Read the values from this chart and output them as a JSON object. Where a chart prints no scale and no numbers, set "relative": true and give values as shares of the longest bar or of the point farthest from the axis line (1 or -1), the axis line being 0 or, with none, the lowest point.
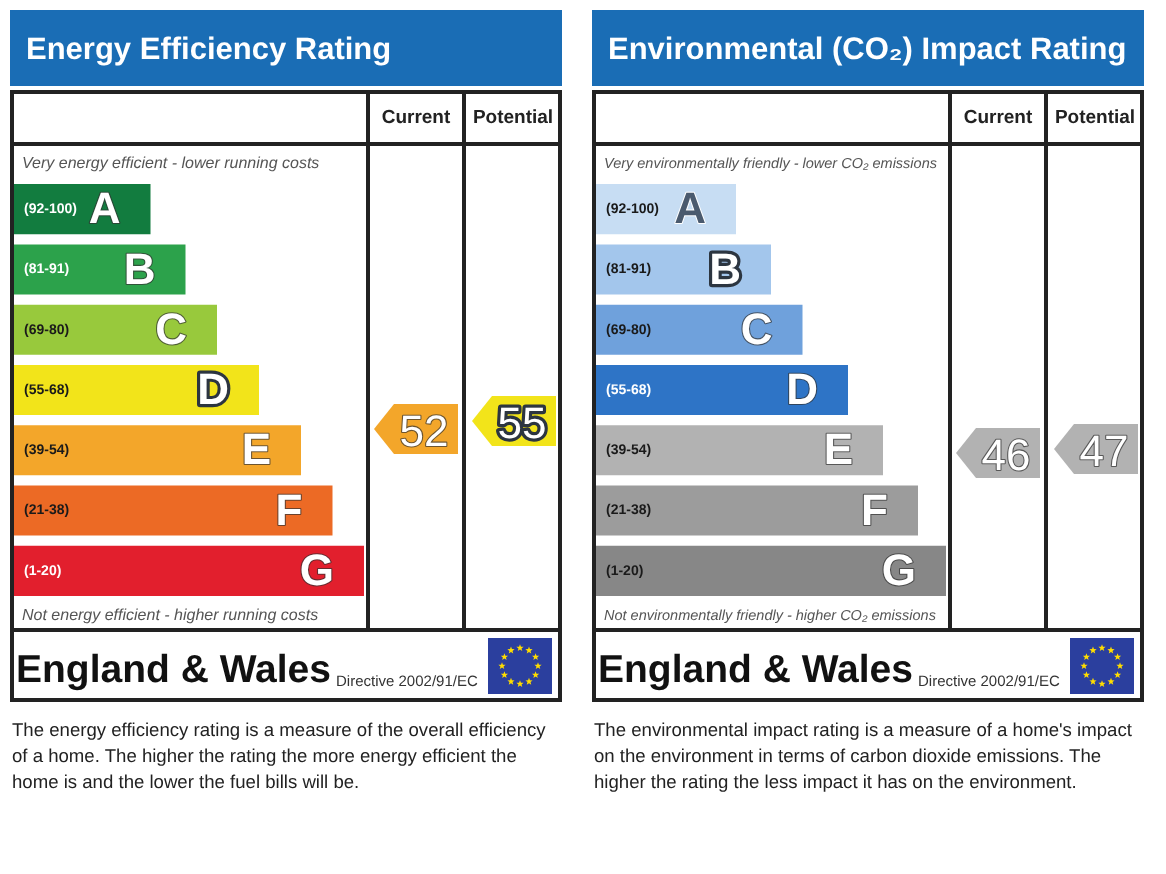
{
  "chart_data": [
    {
      "type": "bar",
      "orientation": "horizontal",
      "relative": true,
      "title": "Energy Efficiency Rating",
      "categories": [
        "(92-100)",
        "(81-91)",
        "(69-80)",
        "(55-68)",
        "(39-54)",
        "(21-38)",
        "(1-20)"
      ],
      "values": [
        0.39,
        0.49,
        0.58,
        0.7,
        0.82,
        0.91,
        1
      ],
      "colors": [
        "#127c3f",
        "#2ca24b",
        "#98c93c",
        "#f2e41a",
        "#f3a62a",
        "#ec6a25",
        "#e21f2d"
      ],
      "annotations": [
        "Very energy efficient - lower running costs",
        "Not energy efficient - higher running costs",
        "Current",
        "Potential",
        "52",
        "55",
        "England & Wales",
        "Directive 2002/91/EC",
        "The energy efficiency rating is a measure of the overall efficiency of a home. The higher the rating the more energy efficient the home is and the lower the fuel bills will be.",
        {
          "text": "A",
          "x": 0.39,
          "y": "(92-100)"
        },
        {
          "text": "B",
          "x": 0.49,
          "y": "(81-91)"
        },
        {
          "text": "C",
          "x": 0.58,
          "y": "(69-80)"
        },
        {
          "text": "D",
          "x": 0.7,
          "y": "(55-68)"
        },
        {
          "text": "E",
          "x": 0.82,
          "y": "(39-54)"
        },
        {
          "text": "F",
          "x": 0.91,
          "y": "(21-38)"
        },
        {
          "text": "G",
          "x": 1,
          "y": "(1-20)"
        }
      ]
    },
    {
      "type": "bar",
      "orientation": "horizontal",
      "relative": true,
      "title": "Environmental (CO₂) Impact Rating",
      "categories": [
        "(92-100)",
        "(81-91)",
        "(69-80)",
        "(55-68)",
        "(39-54)",
        "(21-38)",
        "(1-20)"
      ],
      "values": [
        0.4,
        0.5,
        0.59,
        0.72,
        0.82,
        0.92,
        1
      ],
      "colors": [
        "#c7ddf3",
        "#a3c6ec",
        "#6fa1dc",
        "#2e74c6",
        "#b2b2b2",
        "#9c9c9c",
        "#878787"
      ],
      "annotations": [
        "Very environmentally friendly - lower CO₂ emissions",
        "Not environmentally friendly - higher CO₂ emissions",
        "Current",
        "Potential",
        "46",
        "47",
        "England & Wales",
        "Directive 2002/91/EC",
        "The environmental impact rating is a measure of a home's impact on the environment in terms of carbon dioxide emissions. The higher the rating the less impact it has on the environment.",
        {
          "text": "A",
          "x": 0.4,
          "y": "(92-100)"
        },
        {
          "text": "B",
          "x": 0.5,
          "y": "(81-91)"
        },
        {
          "text": "C",
          "x": 0.59,
          "y": "(69-80)"
        },
        {
          "text": "D",
          "x": 0.72,
          "y": "(55-68)"
        },
        {
          "text": "E",
          "x": 0.82,
          "y": "(39-54)"
        },
        {
          "text": "F",
          "x": 0.92,
          "y": "(21-38)"
        },
        {
          "text": "G",
          "x": 1,
          "y": "(1-20)"
        }
      ]
    }
  ]
}
